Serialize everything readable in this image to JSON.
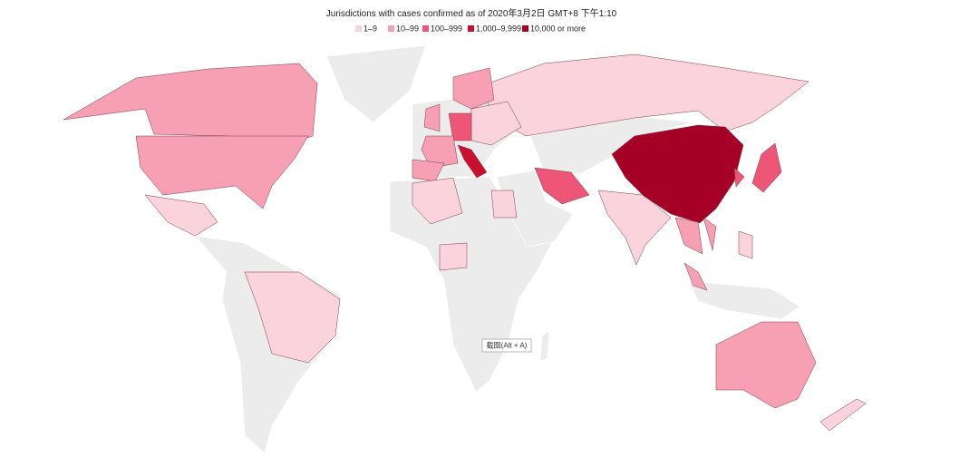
{
  "title": "Jurisdictions with cases confirmed as of 2020年3月2日 GMT+8 下午1:10",
  "legend": [
    {
      "label": "1–9",
      "color": "#fbd3dd"
    },
    {
      "label": "10–99",
      "color": "#f7a0b3"
    },
    {
      "label": "100–999",
      "color": "#ee5677"
    },
    {
      "label": "1,000–9,999",
      "color": "#c9102f"
    },
    {
      "label": "10,000 or more",
      "color": "#a50026"
    }
  ],
  "tooltip": "截图(Alt + A)"
}
